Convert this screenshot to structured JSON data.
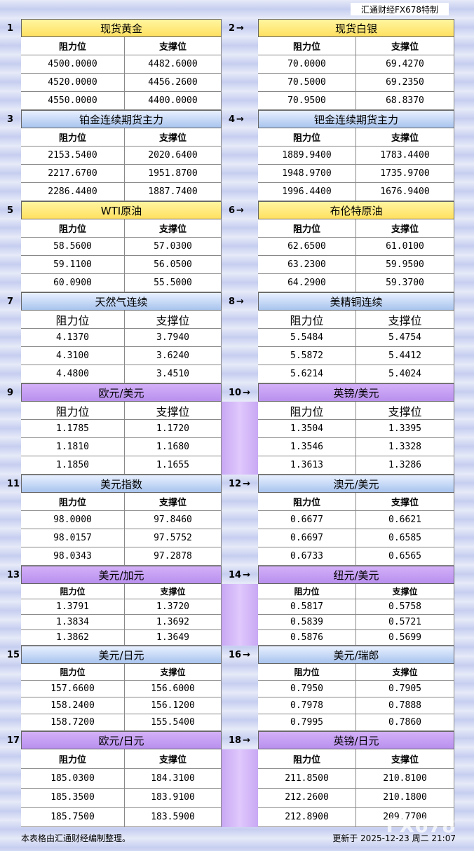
{
  "header": {
    "brand": "汇通财经FX678特制"
  },
  "blocks": [
    {
      "number": 1,
      "title": "现货黄金",
      "headers": [
        "阻力位",
        "支撑位"
      ],
      "rows": [
        [
          "4500.0000",
          "4482.6000"
        ],
        [
          "4520.0000",
          "4456.2600"
        ],
        [
          "4550.0000",
          "4400.0000"
        ]
      ]
    },
    {
      "number": 2,
      "title": "现货白银",
      "headers": [
        "阻力位",
        "支撑位"
      ],
      "rows": [
        [
          "70.0000",
          "69.4270"
        ],
        [
          "70.5000",
          "69.2350"
        ],
        [
          "70.9500",
          "68.8370"
        ]
      ]
    },
    {
      "number": 3,
      "title": "铂金连续期货主力",
      "headers": [
        "阻力位",
        "支撑位"
      ],
      "rows": [
        [
          "2153.5400",
          "2020.6400"
        ],
        [
          "2217.6700",
          "1951.8700"
        ],
        [
          "2286.4400",
          "1887.7400"
        ]
      ]
    },
    {
      "number": 4,
      "title": "钯金连续期货主力",
      "headers": [
        "阻力位",
        "支撑位"
      ],
      "rows": [
        [
          "1889.9400",
          "1783.4400"
        ],
        [
          "1948.9700",
          "1735.9700"
        ],
        [
          "1996.4400",
          "1676.9400"
        ]
      ]
    },
    {
      "number": 5,
      "title": "WTI原油",
      "headers": [
        "阻力位",
        "支撑位"
      ],
      "rows": [
        [
          "58.5600",
          "57.0300"
        ],
        [
          "59.1100",
          "56.0500"
        ],
        [
          "60.0900",
          "55.5000"
        ]
      ]
    },
    {
      "number": 6,
      "title": "布伦特原油",
      "headers": [
        "阻力位",
        "支撑位"
      ],
      "rows": [
        [
          "62.6500",
          "61.0100"
        ],
        [
          "63.2300",
          "59.9500"
        ],
        [
          "64.2900",
          "59.3700"
        ]
      ]
    },
    {
      "number": 7,
      "title": "天然气连续",
      "headers": [
        "阻力位",
        "支撑位"
      ],
      "rows": [
        [
          "4.1370",
          "3.7940"
        ],
        [
          "4.3100",
          "3.6240"
        ],
        [
          "4.4800",
          "3.4510"
        ]
      ]
    },
    {
      "number": 8,
      "title": "美精铜连续",
      "headers": [
        "阻力位",
        "支撑位"
      ],
      "rows": [
        [
          "5.5484",
          "5.4754"
        ],
        [
          "5.5872",
          "5.4412"
        ],
        [
          "5.6214",
          "5.4024"
        ]
      ]
    },
    {
      "number": 9,
      "title": "欧元/美元",
      "headers": [
        "阻力位",
        "支撑位"
      ],
      "rows": [
        [
          "1.1785",
          "1.1720"
        ],
        [
          "1.1810",
          "1.1680"
        ],
        [
          "1.1850",
          "1.1655"
        ]
      ]
    },
    {
      "number": 10,
      "title": "英镑/美元",
      "headers": [
        "阻力位",
        "支撑位"
      ],
      "rows": [
        [
          "1.3504",
          "1.3395"
        ],
        [
          "1.3546",
          "1.3328"
        ],
        [
          "1.3613",
          "1.3286"
        ]
      ]
    },
    {
      "number": 11,
      "title": "美元指数",
      "headers": [
        "阻力位",
        "支撑位"
      ],
      "rows": [
        [
          "98.0000",
          "97.8460"
        ],
        [
          "98.0157",
          "97.5752"
        ],
        [
          "98.0343",
          "97.2878"
        ]
      ]
    },
    {
      "number": 12,
      "title": "澳元/美元",
      "headers": [
        "阻力位",
        "支撑位"
      ],
      "rows": [
        [
          "0.6677",
          "0.6621"
        ],
        [
          "0.6697",
          "0.6585"
        ],
        [
          "0.6733",
          "0.6565"
        ]
      ]
    },
    {
      "number": 13,
      "title": "美元/加元",
      "headers": [
        "阻力位",
        "支撑位"
      ],
      "rows": [
        [
          "1.3791",
          "1.3720"
        ],
        [
          "1.3834",
          "1.3692"
        ],
        [
          "1.3862",
          "1.3649"
        ]
      ]
    },
    {
      "number": 14,
      "title": "纽元/美元",
      "headers": [
        "阻力位",
        "支撑位"
      ],
      "rows": [
        [
          "0.5817",
          "0.5758"
        ],
        [
          "0.5839",
          "0.5721"
        ],
        [
          "0.5876",
          "0.5699"
        ]
      ]
    },
    {
      "number": 15,
      "title": "美元/日元",
      "headers": [
        "阻力位",
        "支撑位"
      ],
      "rows": [
        [
          "157.6600",
          "156.6000"
        ],
        [
          "158.2400",
          "156.1200"
        ],
        [
          "158.7200",
          "155.5400"
        ]
      ]
    },
    {
      "number": 16,
      "title": "美元/瑞郎",
      "headers": [
        "阻力位",
        "支撑位"
      ],
      "rows": [
        [
          "0.7950",
          "0.7905"
        ],
        [
          "0.7978",
          "0.7888"
        ],
        [
          "0.7995",
          "0.7860"
        ]
      ]
    },
    {
      "number": 17,
      "title": "欧元/日元",
      "headers": [
        "阻力位",
        "支撑位"
      ],
      "rows": [
        [
          "185.0300",
          "184.3100"
        ],
        [
          "185.3500",
          "183.9100"
        ],
        [
          "185.7500",
          "183.5900"
        ]
      ]
    },
    {
      "number": 18,
      "title": "英镑/日元",
      "headers": [
        "阻力位",
        "支撑位"
      ],
      "rows": [
        [
          "211.8500",
          "210.8100"
        ],
        [
          "212.2600",
          "210.1800"
        ],
        [
          "212.8900",
          "209.7700"
        ]
      ]
    }
  ],
  "footer": {
    "note": "本表格由汇通财经编制整理。",
    "updated": "更新于 2025-12-23 周二 21:07"
  },
  "watermark": "FX678"
}
